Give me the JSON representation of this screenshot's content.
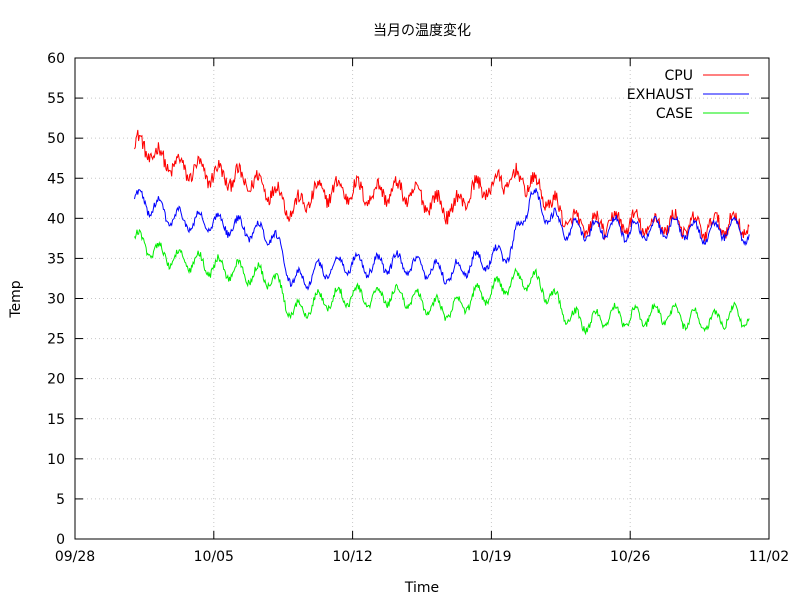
{
  "chart_data": {
    "type": "line",
    "title": "当月の温度変化",
    "xlabel": "Time",
    "ylabel": "Temp",
    "ylim": [
      0,
      60
    ],
    "yticks": [
      0,
      5,
      10,
      15,
      20,
      25,
      30,
      35,
      40,
      45,
      50,
      55,
      60
    ],
    "xlim": [
      "2013-09-28",
      "2013-11-02"
    ],
    "xticks": [
      "09/28",
      "10/05",
      "10/12",
      "10/19",
      "10/26",
      "11/02"
    ],
    "grid": true,
    "legend_position": "top-right",
    "x": [
      "10/01",
      "10/02",
      "10/03",
      "10/04",
      "10/05",
      "10/06",
      "10/07",
      "10/08",
      "10/09",
      "10/10",
      "10/11",
      "10/12",
      "10/13",
      "10/14",
      "10/15",
      "10/16",
      "10/17",
      "10/18",
      "10/19",
      "10/20",
      "10/21",
      "10/22",
      "10/23",
      "10/24",
      "10/25",
      "10/26",
      "10/27",
      "10/28",
      "10/29",
      "10/30",
      "10/31",
      "11/01"
    ],
    "series": [
      {
        "name": "CPU",
        "color": "#ff0000",
        "values": [
          49.5,
          48.0,
          46.5,
          46.0,
          45.5,
          45.0,
          44.5,
          43.5,
          41.0,
          43.0,
          43.5,
          43.5,
          43.0,
          43.5,
          43.0,
          42.0,
          41.0,
          43.5,
          44.0,
          45.0,
          44.5,
          42.0,
          39.5,
          39.0,
          39.5,
          39.5,
          39.0,
          39.5,
          39.0,
          39.0,
          39.5,
          39.0
        ]
      },
      {
        "name": "EXHAUST",
        "color": "#0000ff",
        "values": [
          42.5,
          41.5,
          40.0,
          39.5,
          39.5,
          39.0,
          38.5,
          38.0,
          32.0,
          33.0,
          34.0,
          34.5,
          34.0,
          34.5,
          34.0,
          33.5,
          33.0,
          34.5,
          35.0,
          36.0,
          43.0,
          40.0,
          38.5,
          38.5,
          39.0,
          38.5,
          38.5,
          39.0,
          38.5,
          38.0,
          39.0,
          38.0
        ]
      },
      {
        "name": "CASE",
        "color": "#00ee00",
        "values": [
          37.5,
          36.0,
          35.0,
          34.5,
          34.0,
          33.5,
          33.0,
          32.5,
          28.0,
          29.5,
          30.0,
          30.5,
          30.0,
          30.5,
          30.0,
          29.0,
          28.5,
          30.0,
          31.0,
          32.0,
          32.5,
          30.5,
          27.5,
          27.0,
          28.0,
          27.5,
          28.0,
          28.0,
          27.5,
          27.0,
          28.0,
          27.5
        ]
      }
    ]
  }
}
